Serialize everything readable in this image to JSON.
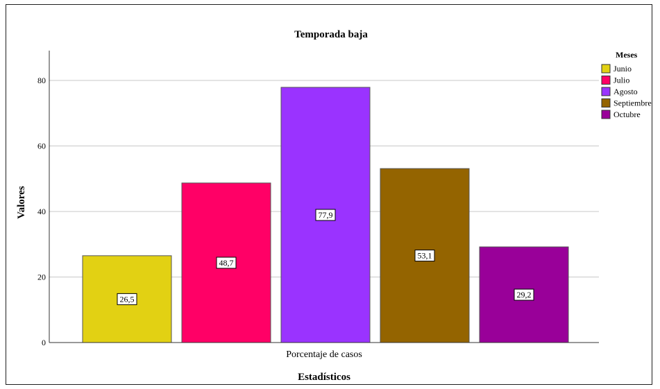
{
  "chart_data": {
    "type": "bar",
    "title": "Temporada baja",
    "xlabel": "Estadísticos",
    "ylabel": "Valores",
    "categories": [
      "Porcentaje de casos"
    ],
    "series": [
      {
        "name": "Junio",
        "values": [
          26.5
        ],
        "label": "26,5",
        "color": "#e2d113"
      },
      {
        "name": "Julio",
        "values": [
          48.7
        ],
        "label": "48,7",
        "color": "#ff0066"
      },
      {
        "name": "Agosto",
        "values": [
          77.9
        ],
        "label": "77,9",
        "color": "#9a33ff"
      },
      {
        "name": "Septiembre",
        "values": [
          53.1
        ],
        "label": "53,1",
        "color": "#946400"
      },
      {
        "name": "Octubre",
        "values": [
          29.2
        ],
        "label": "29,2",
        "color": "#990099"
      }
    ],
    "ylim": [
      0,
      88
    ],
    "yticks": [
      0,
      20,
      40,
      60,
      80
    ],
    "grid": true,
    "legend_title": "Meses",
    "legend_position": "top-right"
  }
}
